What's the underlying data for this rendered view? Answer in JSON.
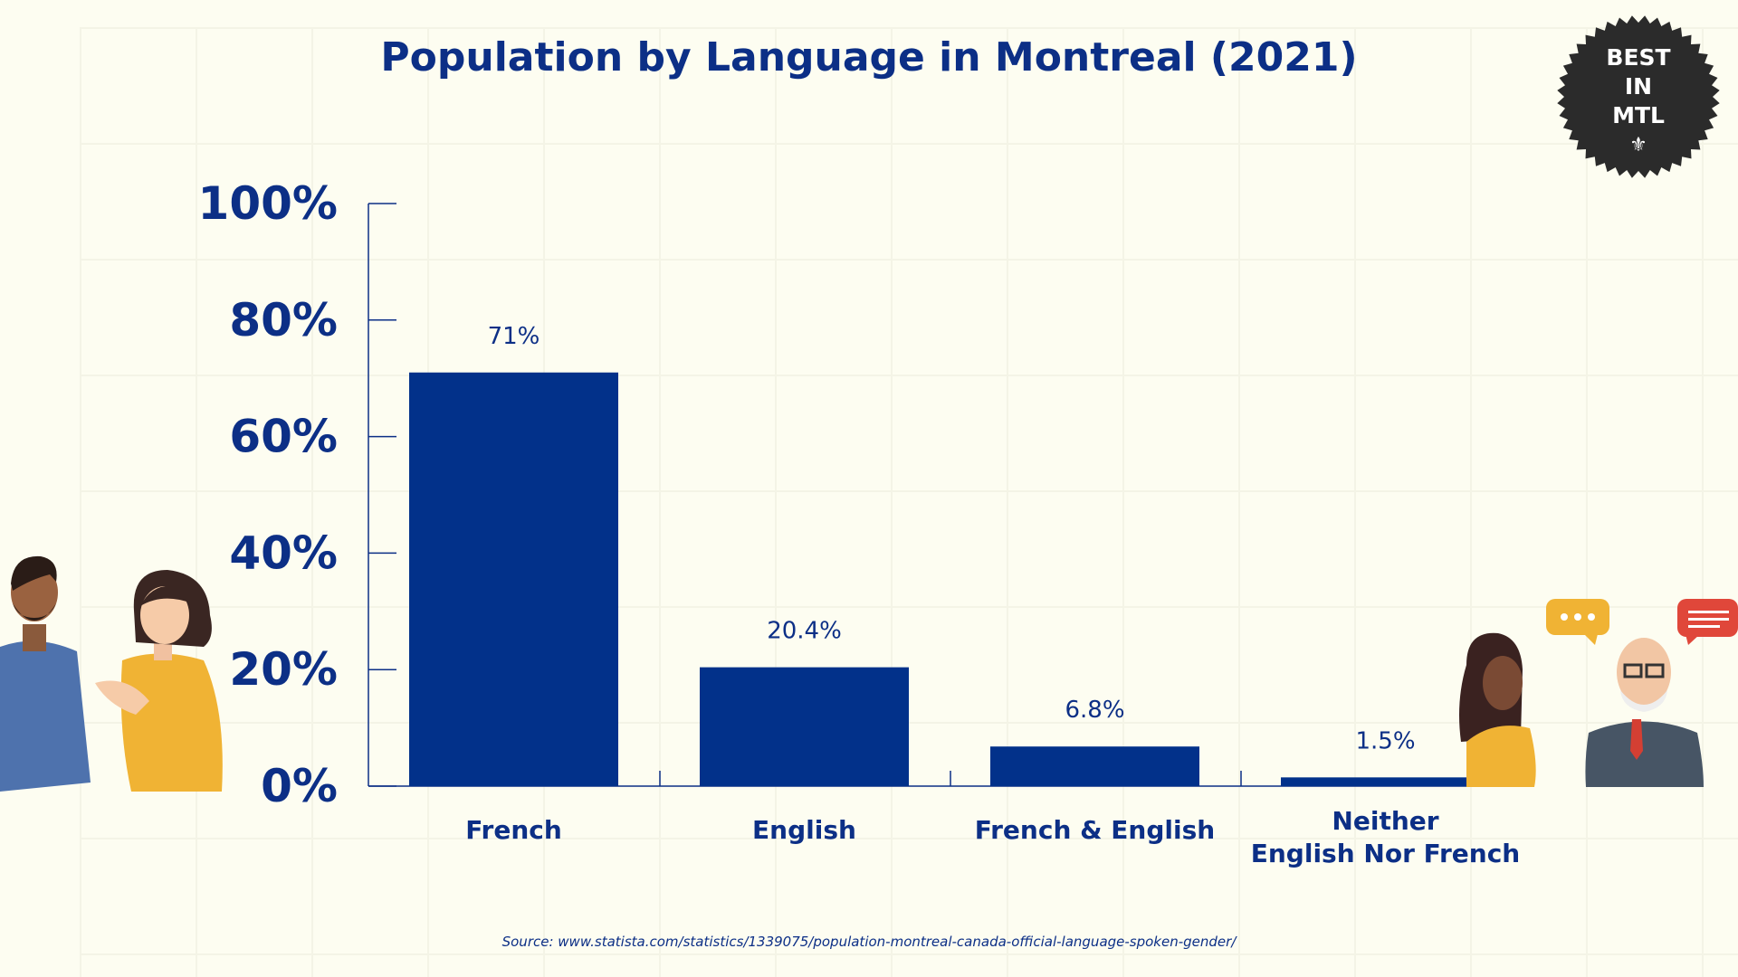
{
  "chart_data": {
    "type": "bar",
    "title": "Population by Language in Montreal (2021)",
    "categories": [
      "French",
      "English",
      "French & English",
      "Neither English Nor French"
    ],
    "category_lines": [
      [
        "French"
      ],
      [
        "English"
      ],
      [
        "French & English"
      ],
      [
        "Neither",
        "English Nor French"
      ]
    ],
    "values": [
      71,
      20.4,
      6.8,
      1.5
    ],
    "value_labels": [
      "71%",
      "20.4%",
      "6.8%",
      "1.5%"
    ],
    "yticks": [
      "0%",
      "20%",
      "40%",
      "60%",
      "80%",
      "100%"
    ],
    "ytick_values": [
      0,
      20,
      40,
      60,
      80,
      100
    ],
    "ylim": [
      0,
      100
    ],
    "xlabel": "",
    "ylabel": "",
    "grid": false,
    "bar_color": "#02318a"
  },
  "badge": {
    "lines": [
      "BEST",
      "IN",
      "MTL"
    ]
  },
  "source": "Source: www.statista.com/statistics/1339075/population-montreal-canada-official-language-spoken-gender/"
}
